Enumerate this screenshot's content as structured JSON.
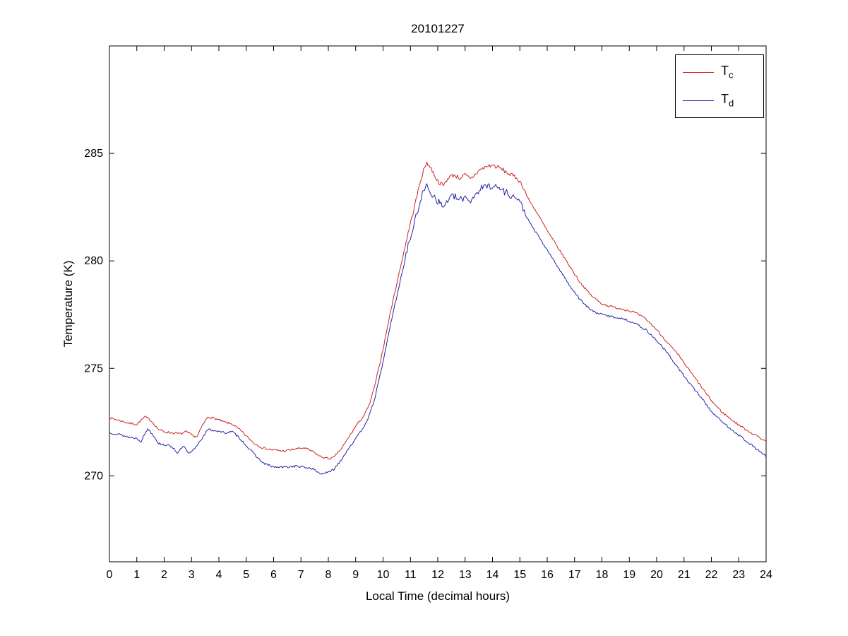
{
  "figure": {
    "background": "#ffffff"
  },
  "chart_data": {
    "type": "line",
    "title": "20101227",
    "xlabel": "Local Time (decimal hours)",
    "ylabel": "Temperature (K)",
    "xlim": [
      0,
      24
    ],
    "ylim": [
      266,
      290
    ],
    "x_ticks": [
      0,
      1,
      2,
      3,
      4,
      5,
      6,
      7,
      8,
      9,
      10,
      11,
      12,
      13,
      14,
      15,
      16,
      17,
      18,
      19,
      20,
      21,
      22,
      23,
      24
    ],
    "y_ticks": [
      270,
      275,
      280,
      285
    ],
    "grid": false,
    "axis_color": "#000000",
    "legend": {
      "position": "top-right",
      "entries": [
        {
          "base": "T",
          "sub": "c"
        },
        {
          "base": "T",
          "sub": "d"
        }
      ]
    },
    "series": [
      {
        "name": "Tc",
        "color": "#cc2222",
        "seed": 7,
        "noise": {
          "base": 0.05,
          "plateau_extra": 0.05,
          "plateau_range": [
            10.8,
            15.2
          ]
        },
        "points": [
          [
            0,
            272.7
          ],
          [
            0.3,
            272.6
          ],
          [
            0.7,
            272.45
          ],
          [
            1.0,
            272.4
          ],
          [
            1.3,
            272.75
          ],
          [
            1.5,
            272.6
          ],
          [
            1.8,
            272.15
          ],
          [
            2.0,
            272.05
          ],
          [
            2.3,
            272.0
          ],
          [
            2.6,
            271.95
          ],
          [
            2.8,
            272.05
          ],
          [
            3.0,
            271.9
          ],
          [
            3.2,
            271.8
          ],
          [
            3.4,
            272.35
          ],
          [
            3.6,
            272.75
          ],
          [
            3.9,
            272.65
          ],
          [
            4.2,
            272.5
          ],
          [
            4.5,
            272.4
          ],
          [
            4.8,
            272.1
          ],
          [
            5.0,
            271.85
          ],
          [
            5.3,
            271.5
          ],
          [
            5.6,
            271.3
          ],
          [
            6.0,
            271.2
          ],
          [
            6.4,
            271.15
          ],
          [
            6.8,
            271.25
          ],
          [
            7.1,
            271.3
          ],
          [
            7.4,
            271.15
          ],
          [
            7.7,
            270.9
          ],
          [
            8.0,
            270.8
          ],
          [
            8.2,
            270.85
          ],
          [
            8.5,
            271.3
          ],
          [
            8.8,
            271.9
          ],
          [
            9.0,
            272.3
          ],
          [
            9.3,
            272.8
          ],
          [
            9.5,
            273.3
          ],
          [
            9.7,
            274.2
          ],
          [
            10.0,
            275.9
          ],
          [
            10.3,
            277.8
          ],
          [
            10.6,
            279.5
          ],
          [
            10.9,
            281.2
          ],
          [
            11.2,
            282.8
          ],
          [
            11.4,
            283.9
          ],
          [
            11.6,
            284.6
          ],
          [
            11.8,
            284.2
          ],
          [
            12.0,
            283.7
          ],
          [
            12.2,
            283.5
          ],
          [
            12.4,
            283.9
          ],
          [
            12.6,
            284.0
          ],
          [
            12.8,
            283.85
          ],
          [
            13.0,
            284.0
          ],
          [
            13.2,
            283.8
          ],
          [
            13.5,
            284.2
          ],
          [
            13.8,
            284.4
          ],
          [
            14.0,
            284.45
          ],
          [
            14.3,
            284.3
          ],
          [
            14.6,
            284.05
          ],
          [
            14.9,
            283.85
          ],
          [
            15.1,
            283.5
          ],
          [
            15.3,
            282.9
          ],
          [
            15.6,
            282.3
          ],
          [
            16.0,
            281.4
          ],
          [
            16.4,
            280.6
          ],
          [
            16.8,
            279.8
          ],
          [
            17.2,
            279.0
          ],
          [
            17.6,
            278.4
          ],
          [
            18.0,
            278.0
          ],
          [
            18.4,
            277.85
          ],
          [
            18.8,
            277.75
          ],
          [
            19.2,
            277.6
          ],
          [
            19.6,
            277.3
          ],
          [
            20.0,
            276.8
          ],
          [
            20.4,
            276.2
          ],
          [
            20.8,
            275.6
          ],
          [
            21.2,
            274.9
          ],
          [
            21.6,
            274.2
          ],
          [
            22.0,
            273.5
          ],
          [
            22.4,
            272.95
          ],
          [
            22.8,
            272.55
          ],
          [
            23.2,
            272.2
          ],
          [
            23.6,
            271.9
          ],
          [
            24.0,
            271.6
          ]
        ]
      },
      {
        "name": "Td",
        "color": "#2222aa",
        "seed": 13,
        "noise": {
          "base": 0.05,
          "plateau_extra": 0.12,
          "plateau_range": [
            10.8,
            15.2
          ]
        },
        "points": [
          [
            0,
            272.0
          ],
          [
            0.3,
            271.95
          ],
          [
            0.7,
            271.8
          ],
          [
            1.0,
            271.75
          ],
          [
            1.15,
            271.6
          ],
          [
            1.4,
            272.2
          ],
          [
            1.6,
            271.9
          ],
          [
            1.8,
            271.5
          ],
          [
            2.0,
            271.45
          ],
          [
            2.3,
            271.35
          ],
          [
            2.5,
            271.05
          ],
          [
            2.7,
            271.4
          ],
          [
            2.9,
            271.0
          ],
          [
            3.1,
            271.25
          ],
          [
            3.3,
            271.6
          ],
          [
            3.6,
            272.15
          ],
          [
            3.9,
            272.1
          ],
          [
            4.2,
            272.0
          ],
          [
            4.5,
            272.05
          ],
          [
            4.8,
            271.7
          ],
          [
            5.0,
            271.4
          ],
          [
            5.3,
            271.0
          ],
          [
            5.6,
            270.6
          ],
          [
            6.0,
            270.4
          ],
          [
            6.4,
            270.4
          ],
          [
            6.8,
            270.45
          ],
          [
            7.1,
            270.4
          ],
          [
            7.4,
            270.35
          ],
          [
            7.7,
            270.1
          ],
          [
            8.0,
            270.15
          ],
          [
            8.2,
            270.3
          ],
          [
            8.5,
            270.8
          ],
          [
            8.8,
            271.4
          ],
          [
            9.0,
            271.7
          ],
          [
            9.3,
            272.3
          ],
          [
            9.5,
            272.8
          ],
          [
            9.7,
            273.6
          ],
          [
            10.0,
            275.3
          ],
          [
            10.3,
            277.2
          ],
          [
            10.6,
            278.9
          ],
          [
            10.9,
            280.6
          ],
          [
            11.2,
            282.0
          ],
          [
            11.4,
            283.0
          ],
          [
            11.6,
            283.5
          ],
          [
            11.8,
            283.1
          ],
          [
            12.0,
            282.8
          ],
          [
            12.2,
            282.5
          ],
          [
            12.4,
            282.9
          ],
          [
            12.6,
            283.0
          ],
          [
            12.8,
            282.8
          ],
          [
            13.0,
            283.0
          ],
          [
            13.2,
            282.8
          ],
          [
            13.5,
            283.3
          ],
          [
            13.8,
            283.5
          ],
          [
            14.0,
            283.5
          ],
          [
            14.3,
            283.35
          ],
          [
            14.6,
            283.1
          ],
          [
            14.9,
            282.9
          ],
          [
            15.1,
            282.5
          ],
          [
            15.3,
            281.9
          ],
          [
            15.6,
            281.3
          ],
          [
            16.0,
            280.5
          ],
          [
            16.4,
            279.7
          ],
          [
            16.8,
            278.9
          ],
          [
            17.2,
            278.2
          ],
          [
            17.6,
            277.7
          ],
          [
            18.0,
            277.5
          ],
          [
            18.4,
            277.4
          ],
          [
            18.8,
            277.3
          ],
          [
            19.2,
            277.1
          ],
          [
            19.6,
            276.8
          ],
          [
            20.0,
            276.3
          ],
          [
            20.4,
            275.7
          ],
          [
            20.8,
            275.0
          ],
          [
            21.2,
            274.3
          ],
          [
            21.6,
            273.7
          ],
          [
            22.0,
            273.0
          ],
          [
            22.4,
            272.5
          ],
          [
            22.8,
            272.1
          ],
          [
            23.2,
            271.7
          ],
          [
            23.6,
            271.3
          ],
          [
            24.0,
            270.9
          ]
        ]
      }
    ]
  }
}
